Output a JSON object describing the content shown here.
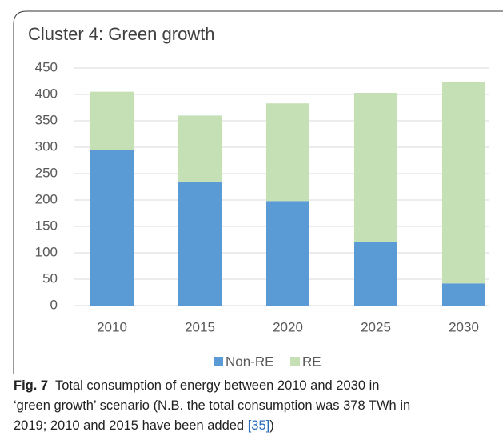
{
  "chart_data": {
    "type": "bar",
    "stacked": true,
    "title": "Cluster 4: Green growth",
    "categories": [
      "2010",
      "2015",
      "2020",
      "2025",
      "2030"
    ],
    "series": [
      {
        "name": "Non-RE",
        "color": "#5b9bd5",
        "values": [
          295,
          235,
          198,
          120,
          42
        ]
      },
      {
        "name": "RE",
        "color": "#c5e0b4",
        "values": [
          110,
          125,
          185,
          283,
          381
        ]
      }
    ],
    "ylim": [
      0,
      450
    ],
    "yticks": [
      0,
      50,
      100,
      150,
      200,
      250,
      300,
      350,
      400,
      450
    ],
    "grid": true,
    "legend": "bottom"
  },
  "caption": {
    "label": "Fig. 7",
    "lines": [
      "Total consumption of energy between 2010 and 2030 in",
      "‘green growth’ scenario (N.B. the total consumption was 378 TWh in",
      "2019; 2010 and 2015 have been added "
    ],
    "ref": "[35]",
    "end": ")"
  }
}
